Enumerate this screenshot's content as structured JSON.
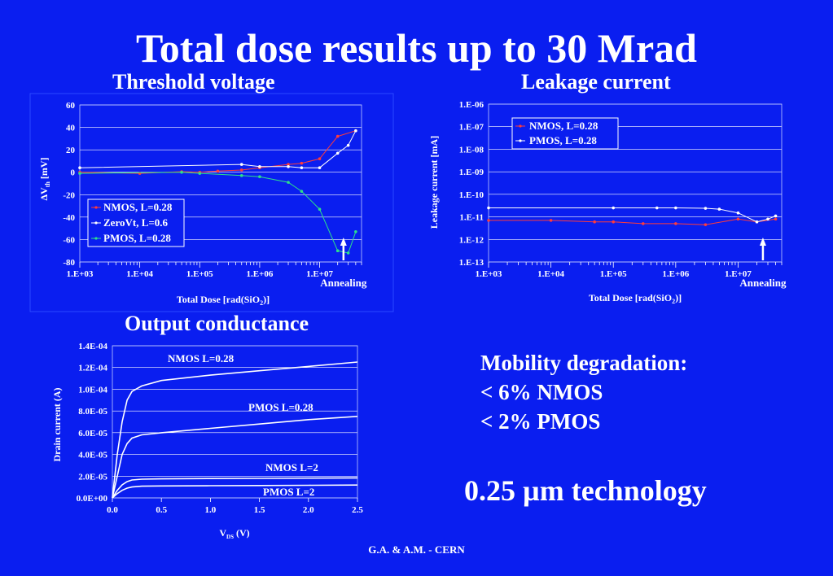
{
  "slide": {
    "title": "Total dose results up to 30 Mrad",
    "credits": "G.A. & A.M.  -  CERN"
  },
  "text_panel": {
    "mobility_heading": "Mobility degradation:",
    "mobility_nmos": "< 6% NMOS",
    "mobility_pmos": "< 2% PMOS",
    "technology": "0.25 µm technology"
  },
  "colors": {
    "background": "#0a1ef0",
    "nmos": "#ff3b3b",
    "zerovt": "#ffffff",
    "pmos": "#2de08a",
    "grid": "#ffffff"
  },
  "chart_data": [
    {
      "id": "vth",
      "type": "scatter",
      "title": "Threshold voltage",
      "xlabel": "Total Dose [rad(SiO",
      "xlabel_sub": "2",
      "xlabel_end": ")]",
      "ylabel_delta": "ΔV",
      "ylabel_sub": "th",
      "ylabel_end": " [mV]",
      "x_scale": "log",
      "xlim": [
        1000,
        50000000
      ],
      "ylim": [
        -80,
        60
      ],
      "x_ticks": [
        1000,
        10000,
        100000,
        1000000,
        10000000
      ],
      "x_tick_labels": [
        "1.E+03",
        "1.E+04",
        "1.E+05",
        "1.E+06",
        "1.E+07"
      ],
      "y_ticks": [
        60,
        40,
        20,
        0,
        -20,
        -40,
        -60,
        -80
      ],
      "y_tick_labels": [
        "60",
        "40",
        "20",
        "0",
        "-20",
        "-40",
        "-60",
        "-80"
      ],
      "grid": "horizontal",
      "legend": "bottom-left",
      "annotation": "Annealing",
      "annotation_x": 25000000,
      "series": [
        {
          "name": "NMOS, L=0.28",
          "color": "#ff3b3b",
          "x": [
            1000,
            10000,
            50000,
            100000,
            200000,
            500000,
            1000000,
            3000000,
            5000000,
            10000000,
            20000000,
            40000000
          ],
          "y": [
            0,
            -1,
            0.5,
            0,
            1,
            2,
            4,
            7,
            8,
            12,
            32,
            37
          ]
        },
        {
          "name": "ZeroVt, L=0.6",
          "color": "#ffffff",
          "x": [
            1000,
            500000,
            1000000,
            3000000,
            5000000,
            10000000,
            20000000,
            30000000,
            40000000
          ],
          "y": [
            4,
            7,
            5,
            5,
            4,
            4,
            17,
            24,
            37
          ]
        },
        {
          "name": "PMOS, L=0.28",
          "color": "#2de08a",
          "x": [
            1000,
            50000,
            100000,
            500000,
            1000000,
            3000000,
            5000000,
            10000000,
            20000000,
            30000000,
            40000000
          ],
          "y": [
            -1,
            0,
            -1,
            -3,
            -4,
            -9,
            -17,
            -33,
            -70,
            -72,
            -53
          ]
        }
      ]
    },
    {
      "id": "leak",
      "type": "scatter",
      "title": "Leakage current",
      "xlabel": "Total Dose [rad(SiO",
      "xlabel_sub": "2",
      "xlabel_end": ")]",
      "ylabel": "Leakage current [mA]",
      "x_scale": "log",
      "y_scale": "log",
      "xlim": [
        1000,
        50000000
      ],
      "ylim": [
        1e-13,
        1e-06
      ],
      "x_ticks": [
        1000,
        10000,
        100000,
        1000000,
        10000000
      ],
      "x_tick_labels": [
        "1.E+03",
        "1.E+04",
        "1.E+05",
        "1.E+06",
        "1.E+07"
      ],
      "y_ticks": [
        1e-06,
        1e-07,
        1e-08,
        1e-09,
        1e-10,
        1e-11,
        1e-12,
        1e-13
      ],
      "y_tick_labels": [
        "1.E-06",
        "1.E-07",
        "1.E-08",
        "1.E-09",
        "1.E-10",
        "1.E-11",
        "1.E-12",
        "1.E-13"
      ],
      "grid": "horizontal",
      "legend": "top-left",
      "annotation": "Annealing",
      "annotation_x": 25000000,
      "series": [
        {
          "name": "NMOS, L=0.28",
          "color": "#ff3b3b",
          "x": [
            1000,
            10000,
            50000,
            100000,
            300000,
            1000000,
            3000000,
            10000000,
            20000000,
            40000000
          ],
          "y": [
            7e-12,
            7e-12,
            6e-12,
            6e-12,
            5e-12,
            5e-12,
            4.5e-12,
            8e-12,
            6e-12,
            8e-12
          ]
        },
        {
          "name": "PMOS, L=0.28",
          "color": "#ffffff",
          "x": [
            1000,
            100000,
            500000,
            1000000,
            3000000,
            5000000,
            10000000,
            20000000,
            30000000,
            40000000
          ],
          "y": [
            2.5e-11,
            2.5e-11,
            2.5e-11,
            2.5e-11,
            2.4e-11,
            2.2e-11,
            1.5e-11,
            6e-12,
            8e-12,
            1.1e-11
          ]
        }
      ]
    },
    {
      "id": "gds",
      "type": "line",
      "title": "Output conductance",
      "xlabel": "V",
      "xlabel_sub": "DS",
      "xlabel_end": " (V)",
      "ylabel": "Drain current (A)",
      "xlim": [
        0,
        2.5
      ],
      "ylim": [
        0,
        0.00014
      ],
      "x_ticks": [
        0,
        0.5,
        1.0,
        1.5,
        2.0,
        2.5
      ],
      "x_tick_labels": [
        "0.0",
        "0.5",
        "1.0",
        "1.5",
        "2.0",
        "2.5"
      ],
      "y_ticks": [
        0.00014,
        0.00012,
        0.0001,
        8e-05,
        6e-05,
        4e-05,
        2e-05,
        0
      ],
      "y_tick_labels": [
        "1.4E-04",
        "1.2E-04",
        "1.0E-04",
        "8.0E-05",
        "6.0E-05",
        "4.0E-05",
        "2.0E-05",
        "0.0E+00"
      ],
      "grid": "horizontal",
      "series": [
        {
          "name": "NMOS L=0.28",
          "color": "#ffffff",
          "x": [
            0,
            0.05,
            0.1,
            0.15,
            0.2,
            0.3,
            0.5,
            1.0,
            1.5,
            2.0,
            2.5
          ],
          "y": [
            0,
            4e-05,
            7e-05,
            9e-05,
            9.8e-05,
            0.000103,
            0.000108,
            0.000113,
            0.000117,
            0.000121,
            0.000125
          ]
        },
        {
          "name": "PMOS L=0.28",
          "color": "#ffffff",
          "x": [
            0,
            0.05,
            0.1,
            0.15,
            0.2,
            0.3,
            0.5,
            1.0,
            1.5,
            2.0,
            2.5
          ],
          "y": [
            0,
            2e-05,
            4e-05,
            5e-05,
            5.5e-05,
            5.8e-05,
            6e-05,
            6.4e-05,
            6.8e-05,
            7.2e-05,
            7.5e-05
          ]
        },
        {
          "name": "NMOS L=2",
          "color": "#ffffff",
          "x": [
            0,
            0.05,
            0.1,
            0.15,
            0.2,
            0.3,
            0.5,
            1.0,
            1.5,
            2.0,
            2.5
          ],
          "y": [
            0,
            7e-06,
            1.2e-05,
            1.5e-05,
            1.65e-05,
            1.72e-05,
            1.75e-05,
            1.78e-05,
            1.8e-05,
            1.82e-05,
            1.84e-05
          ]
        },
        {
          "name": "PMOS L=2",
          "color": "#ffffff",
          "x": [
            0,
            0.05,
            0.1,
            0.15,
            0.2,
            0.3,
            0.5,
            1.0,
            1.5,
            2.0,
            2.5
          ],
          "y": [
            0,
            4e-06,
            7e-06,
            9e-06,
            1e-05,
            1.08e-05,
            1.1e-05,
            1.12e-05,
            1.14e-05,
            1.16e-05,
            1.18e-05
          ]
        }
      ]
    }
  ]
}
